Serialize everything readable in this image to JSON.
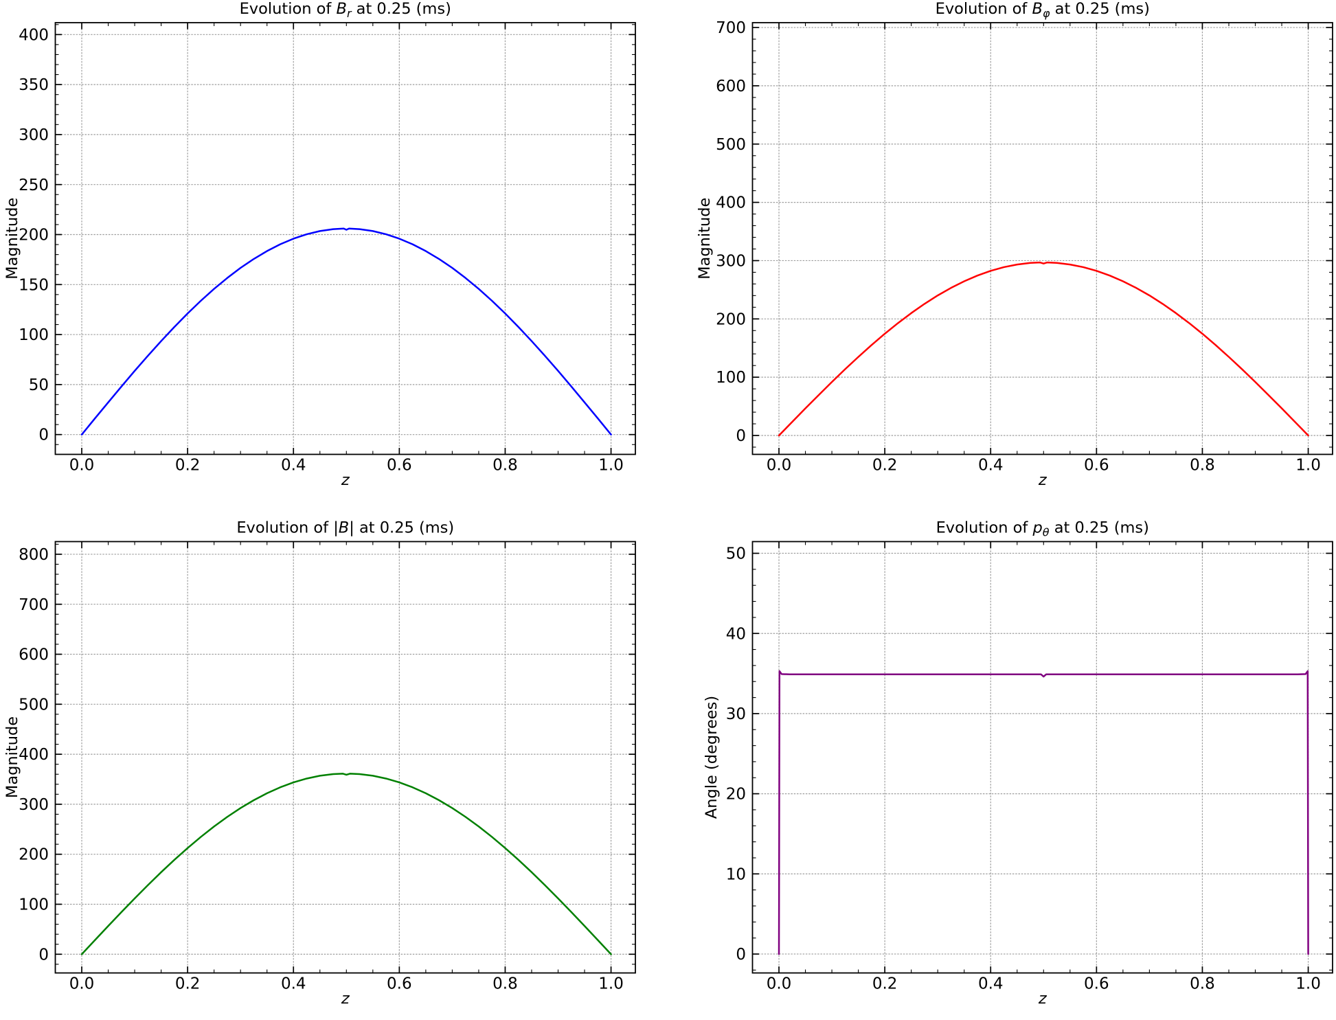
{
  "figure": {
    "background": "#ffffff"
  },
  "chart_data": [
    {
      "id": "br",
      "type": "line",
      "title_plain": "Evolution of B_r at 0.25 (ms)",
      "title_segments": [
        {
          "text": "Evolution of ",
          "style": "normal"
        },
        {
          "text": "B",
          "style": "italic"
        },
        {
          "text": "r",
          "style": "subscript-italic"
        },
        {
          "text": " at 0.25 (ms)",
          "style": "normal"
        }
      ],
      "xlabel": "z",
      "ylabel": "Magnitude",
      "line_color": "#0000ff",
      "xlim": [
        -0.05,
        1.046
      ],
      "ylim": [
        -19.8,
        411.9
      ],
      "xticks": {
        "values": [
          0,
          0.2,
          0.4,
          0.6,
          0.8,
          1.0
        ],
        "labels": [
          "0.0",
          "0.2",
          "0.4",
          "0.6",
          "0.8",
          "1.0"
        ],
        "minor_step": 0.05
      },
      "yticks": {
        "values": [
          0,
          50,
          100,
          150,
          200,
          250,
          300,
          350,
          400
        ],
        "labels": [
          "0",
          "50",
          "100",
          "150",
          "200",
          "250",
          "300",
          "350",
          "400"
        ],
        "minor_step": 10
      },
      "grid": true,
      "x": [
        0,
        0.025,
        0.05,
        0.075,
        0.1,
        0.125,
        0.15,
        0.175,
        0.2,
        0.225,
        0.25,
        0.275,
        0.3,
        0.325,
        0.35,
        0.375,
        0.4,
        0.425,
        0.45,
        0.475,
        0.495,
        0.5,
        0.505,
        0.525,
        0.55,
        0.575,
        0.6,
        0.625,
        0.65,
        0.675,
        0.7,
        0.725,
        0.75,
        0.775,
        0.8,
        0.825,
        0.85,
        0.875,
        0.9,
        0.925,
        0.95,
        0.975,
        1.0
      ],
      "y": [
        0,
        16.2,
        32.2,
        48.1,
        63.7,
        78.8,
        93.5,
        107.6,
        121.1,
        133.8,
        145.7,
        156.6,
        166.7,
        175.6,
        183.5,
        190.3,
        195.9,
        200.3,
        203.5,
        205.4,
        206.0,
        204.8,
        206.0,
        205.4,
        203.5,
        200.3,
        195.9,
        190.3,
        183.5,
        175.6,
        166.7,
        156.6,
        145.7,
        133.8,
        121.1,
        107.6,
        93.5,
        78.8,
        63.7,
        48.1,
        32.2,
        16.2,
        0
      ]
    },
    {
      "id": "bphi",
      "type": "line",
      "title_plain": "Evolution of B_phi at 0.25 (ms)",
      "title_segments": [
        {
          "text": "Evolution of ",
          "style": "normal"
        },
        {
          "text": "B",
          "style": "italic"
        },
        {
          "text": "φ",
          "style": "subscript-italic"
        },
        {
          "text": " at 0.25 (ms)",
          "style": "normal"
        }
      ],
      "xlabel": "z",
      "ylabel": "Magnitude",
      "line_color": "#ff0000",
      "xlim": [
        -0.05,
        1.046
      ],
      "ylim": [
        -32.4,
        708.3
      ],
      "xticks": {
        "values": [
          0,
          0.2,
          0.4,
          0.6,
          0.8,
          1.0
        ],
        "labels": [
          "0.0",
          "0.2",
          "0.4",
          "0.6",
          "0.8",
          "1.0"
        ],
        "minor_step": 0.05
      },
      "yticks": {
        "values": [
          0,
          100,
          200,
          300,
          400,
          500,
          600,
          700
        ],
        "labels": [
          "0",
          "100",
          "200",
          "300",
          "400",
          "500",
          "600",
          "700"
        ],
        "minor_step": 20
      },
      "grid": true,
      "x": [
        0,
        0.025,
        0.05,
        0.075,
        0.1,
        0.125,
        0.15,
        0.175,
        0.2,
        0.225,
        0.25,
        0.275,
        0.3,
        0.325,
        0.35,
        0.375,
        0.4,
        0.425,
        0.45,
        0.475,
        0.493,
        0.5,
        0.507,
        0.525,
        0.55,
        0.575,
        0.6,
        0.625,
        0.65,
        0.675,
        0.7,
        0.725,
        0.75,
        0.775,
        0.8,
        0.825,
        0.85,
        0.875,
        0.9,
        0.925,
        0.95,
        0.975,
        1.0
      ],
      "y": [
        0,
        23.3,
        46.5,
        69.3,
        91.8,
        113.7,
        134.8,
        155.2,
        174.6,
        192.9,
        210.0,
        225.8,
        240.3,
        253.2,
        264.6,
        274.4,
        282.5,
        288.8,
        293.3,
        296.1,
        296.9,
        295.0,
        296.9,
        296.1,
        293.3,
        288.8,
        282.5,
        274.4,
        264.6,
        253.2,
        240.3,
        225.8,
        210.0,
        192.9,
        174.6,
        155.2,
        134.8,
        113.7,
        91.8,
        69.3,
        46.5,
        23.3,
        0
      ]
    },
    {
      "id": "bmag",
      "type": "line",
      "title_plain": "Evolution of |B| at 0.25 (ms)",
      "title_segments": [
        {
          "text": "Evolution of |",
          "style": "normal"
        },
        {
          "text": "B",
          "style": "italic"
        },
        {
          "text": "| at 0.25 (ms)",
          "style": "normal"
        }
      ],
      "xlabel": "z",
      "ylabel": "Magnitude",
      "line_color": "#008000",
      "xlim": [
        -0.05,
        1.046
      ],
      "ylim": [
        -37.4,
        825.3
      ],
      "xticks": {
        "values": [
          0,
          0.2,
          0.4,
          0.6,
          0.8,
          1.0
        ],
        "labels": [
          "0.0",
          "0.2",
          "0.4",
          "0.6",
          "0.8",
          "1.0"
        ],
        "minor_step": 0.05
      },
      "yticks": {
        "values": [
          0,
          100,
          200,
          300,
          400,
          500,
          600,
          700,
          800
        ],
        "labels": [
          "0",
          "100",
          "200",
          "300",
          "400",
          "500",
          "600",
          "700",
          "800"
        ],
        "minor_step": 20
      },
      "grid": true,
      "x": [
        0,
        0.025,
        0.05,
        0.075,
        0.1,
        0.125,
        0.15,
        0.175,
        0.2,
        0.225,
        0.25,
        0.275,
        0.3,
        0.325,
        0.35,
        0.375,
        0.4,
        0.425,
        0.45,
        0.475,
        0.493,
        0.5,
        0.507,
        0.525,
        0.55,
        0.575,
        0.6,
        0.625,
        0.65,
        0.675,
        0.7,
        0.725,
        0.75,
        0.775,
        0.8,
        0.825,
        0.85,
        0.875,
        0.9,
        0.925,
        0.95,
        0.975,
        1.0
      ],
      "y": [
        0,
        28.4,
        56.5,
        84.4,
        111.7,
        138.3,
        164.1,
        188.8,
        212.4,
        234.7,
        255.6,
        274.8,
        292.4,
        308.1,
        322.0,
        333.9,
        343.7,
        351.4,
        357.0,
        360.3,
        361.2,
        359.0,
        361.2,
        360.3,
        357.0,
        351.4,
        343.7,
        333.9,
        322.0,
        308.1,
        292.4,
        274.8,
        255.6,
        234.7,
        212.4,
        188.8,
        164.1,
        138.3,
        111.7,
        84.4,
        56.5,
        28.4,
        0
      ]
    },
    {
      "id": "ptheta",
      "type": "line",
      "title_plain": "Evolution of p_theta at 0.25 (ms)",
      "title_segments": [
        {
          "text": "Evolution of ",
          "style": "normal"
        },
        {
          "text": "p",
          "style": "italic"
        },
        {
          "text": "θ",
          "style": "subscript-italic"
        },
        {
          "text": " at 0.25 (ms)",
          "style": "normal"
        }
      ],
      "xlabel": "z",
      "ylabel": "Angle (degrees)",
      "line_color": "#800080",
      "xlim": [
        -0.05,
        1.046
      ],
      "ylim": [
        -2.36,
        51.46
      ],
      "xticks": {
        "values": [
          0,
          0.2,
          0.4,
          0.6,
          0.8,
          1.0
        ],
        "labels": [
          "0.0",
          "0.2",
          "0.4",
          "0.6",
          "0.8",
          "1.0"
        ],
        "minor_step": 0.05
      },
      "yticks": {
        "values": [
          0,
          10,
          20,
          30,
          40,
          50
        ],
        "labels": [
          "0",
          "10",
          "20",
          "30",
          "40",
          "50"
        ],
        "minor_step": 2
      },
      "grid": true,
      "x": [
        0,
        0.001,
        0.005,
        0.02,
        0.06,
        0.1,
        0.15,
        0.2,
        0.25,
        0.3,
        0.35,
        0.4,
        0.45,
        0.475,
        0.495,
        0.5,
        0.505,
        0.525,
        0.55,
        0.6,
        0.65,
        0.7,
        0.75,
        0.8,
        0.85,
        0.9,
        0.94,
        0.98,
        0.995,
        0.999,
        1.0
      ],
      "y": [
        0,
        35.3,
        34.93,
        34.9,
        34.9,
        34.9,
        34.9,
        34.9,
        34.9,
        34.9,
        34.9,
        34.9,
        34.9,
        34.9,
        34.9,
        34.62,
        34.9,
        34.9,
        34.9,
        34.9,
        34.9,
        34.9,
        34.9,
        34.9,
        34.9,
        34.9,
        34.9,
        34.9,
        34.93,
        35.3,
        0
      ]
    }
  ]
}
